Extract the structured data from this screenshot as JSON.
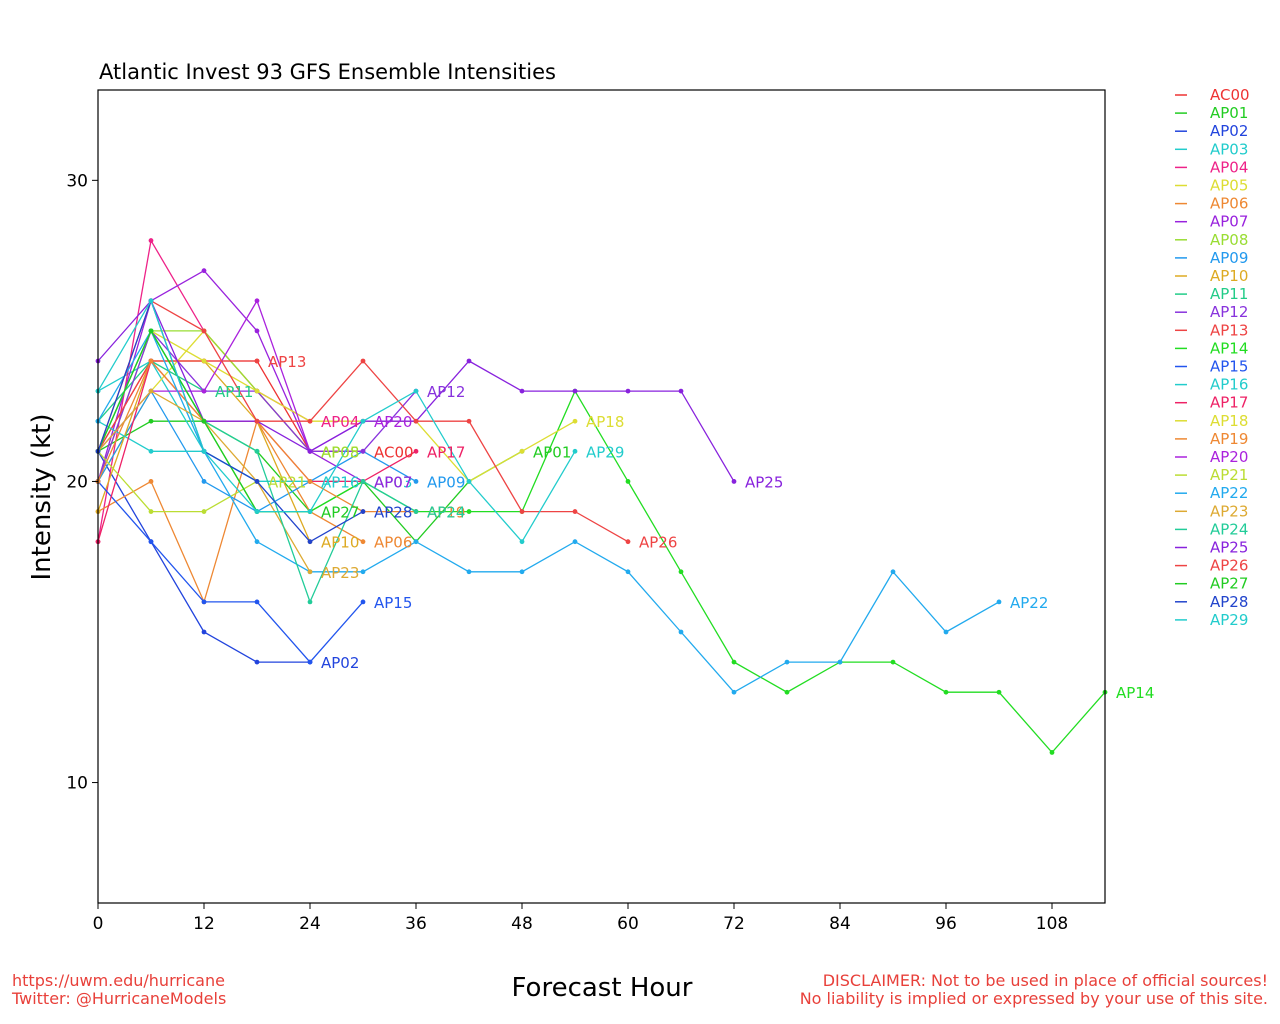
{
  "footer": {
    "url": "https://uwm.edu/hurricane",
    "twitter": "Twitter: @HurricaneModels",
    "disclaimer_1": "DISCLAIMER: Not to be used in place of official sources!",
    "disclaimer_2": "No liability is implied or expressed by your use of this site."
  },
  "chart_data": {
    "type": "line",
    "title": "Atlantic Invest 93 GFS Ensemble Intensities",
    "xlabel": "Forecast Hour",
    "ylabel": "Intensity (kt)",
    "xlim": [
      0,
      114
    ],
    "ylim": [
      6,
      33
    ],
    "xticks": [
      0,
      12,
      24,
      36,
      48,
      60,
      72,
      84,
      96,
      108
    ],
    "yticks": [
      10,
      20,
      30
    ],
    "grid": false,
    "legend_position": "outside-top-right",
    "series": [
      {
        "name": "AC00",
        "color": "#ee3333",
        "x": [
          0,
          6,
          12,
          18,
          24,
          30
        ],
        "y": [
          21,
          24,
          24,
          24,
          21,
          21
        ]
      },
      {
        "name": "AP01",
        "color": "#22cc22",
        "x": [
          0,
          6,
          12,
          18,
          24,
          30,
          36,
          42,
          48
        ],
        "y": [
          21,
          22,
          22,
          21,
          19,
          20,
          18,
          20,
          21
        ]
      },
      {
        "name": "AP02",
        "color": "#2244dd",
        "x": [
          0,
          6,
          12,
          18,
          24
        ],
        "y": [
          21,
          18,
          15,
          14,
          14
        ]
      },
      {
        "name": "AP03",
        "color": "#22cccc",
        "x": [
          0,
          6,
          12,
          18,
          24,
          30
        ],
        "y": [
          23,
          24,
          21,
          20,
          20,
          20
        ]
      },
      {
        "name": "AP04",
        "color": "#ee2288",
        "x": [
          0,
          6,
          12,
          18,
          24
        ],
        "y": [
          18,
          28,
          25,
          23,
          22
        ]
      },
      {
        "name": "AP05",
        "color": "#dddd33",
        "x": [
          0,
          6,
          12,
          18,
          24
        ],
        "y": [
          20,
          23,
          25,
          23,
          21
        ]
      },
      {
        "name": "AP06",
        "color": "#ee8833",
        "x": [
          0,
          6,
          12,
          18,
          24,
          30
        ],
        "y": [
          19,
          20,
          16,
          22,
          19,
          18
        ]
      },
      {
        "name": "AP07",
        "color": "#9922dd",
        "x": [
          0,
          6,
          12,
          18,
          24,
          30
        ],
        "y": [
          20,
          26,
          27,
          25,
          21,
          20
        ]
      },
      {
        "name": "AP08",
        "color": "#99dd33",
        "x": [
          0,
          6,
          12,
          18,
          24
        ],
        "y": [
          20,
          25,
          25,
          23,
          21
        ]
      },
      {
        "name": "AP09",
        "color": "#2299ee",
        "x": [
          0,
          6,
          12,
          18,
          24,
          30,
          36
        ],
        "y": [
          20,
          23,
          20,
          19,
          20,
          21,
          20
        ]
      },
      {
        "name": "AP10",
        "color": "#ddaa22",
        "x": [
          0,
          6,
          12,
          18,
          24
        ],
        "y": [
          19,
          24,
          24,
          22,
          18
        ]
      },
      {
        "name": "AP11",
        "color": "#22cc88",
        "x": [
          0,
          6,
          12
        ],
        "y": [
          22,
          24,
          23
        ]
      },
      {
        "name": "AP12",
        "color": "#8833dd",
        "x": [
          0,
          6,
          12,
          18,
          24,
          30,
          36
        ],
        "y": [
          20,
          25,
          23,
          23,
          21,
          21,
          23
        ]
      },
      {
        "name": "AP13",
        "color": "#ee4444",
        "x": [
          0,
          6,
          12,
          18
        ],
        "y": [
          21,
          24,
          24,
          24
        ]
      },
      {
        "name": "AP14",
        "color": "#22dd22",
        "x": [
          0,
          6,
          12,
          18,
          24,
          30,
          36,
          42,
          48,
          54,
          60,
          66,
          72,
          78,
          84,
          90,
          96,
          102,
          108,
          114
        ],
        "y": [
          21,
          25,
          22,
          19,
          19,
          20,
          19,
          19,
          19,
          23,
          20,
          17,
          14,
          13,
          14,
          14,
          13,
          13,
          11,
          13
        ]
      },
      {
        "name": "AP15",
        "color": "#2255ee",
        "x": [
          0,
          6,
          12,
          18,
          24,
          30
        ],
        "y": [
          20,
          18,
          16,
          16,
          14,
          16
        ]
      },
      {
        "name": "AP16",
        "color": "#22cccc",
        "x": [
          0,
          6,
          12,
          18,
          24
        ],
        "y": [
          22,
          21,
          21,
          20,
          20
        ]
      },
      {
        "name": "AP17",
        "color": "#ee2266",
        "x": [
          0,
          6,
          12,
          18,
          24,
          30,
          36
        ],
        "y": [
          18,
          24,
          22,
          22,
          20,
          20,
          21
        ]
      },
      {
        "name": "AP18",
        "color": "#dddd33",
        "x": [
          0,
          6,
          12,
          18,
          24,
          30,
          36,
          42,
          48,
          54
        ],
        "y": [
          21,
          25,
          24,
          23,
          22,
          22,
          22,
          20,
          21,
          22
        ]
      },
      {
        "name": "AP19",
        "color": "#ee8833",
        "x": [
          0,
          6,
          12,
          18,
          24,
          30,
          36
        ],
        "y": [
          20,
          24,
          22,
          22,
          20,
          19,
          19
        ]
      },
      {
        "name": "AP20",
        "color": "#aa22dd",
        "x": [
          0,
          6,
          12,
          18,
          24,
          30
        ],
        "y": [
          21,
          23,
          23,
          26,
          21,
          22
        ]
      },
      {
        "name": "AP21",
        "color": "#bbdd33",
        "x": [
          0,
          6,
          12,
          18
        ],
        "y": [
          21,
          19,
          19,
          20
        ]
      },
      {
        "name": "AP22",
        "color": "#22aaee",
        "x": [
          0,
          6,
          12,
          18,
          24,
          30,
          36,
          42,
          48,
          54,
          60,
          66,
          72,
          78,
          84,
          90,
          96,
          102
        ],
        "y": [
          22,
          25,
          21,
          18,
          17,
          17,
          18,
          17,
          17,
          18,
          17,
          15,
          13,
          14,
          14,
          17,
          15,
          16
        ]
      },
      {
        "name": "AP23",
        "color": "#ddaa33",
        "x": [
          0,
          6,
          12,
          18,
          24
        ],
        "y": [
          21,
          23,
          22,
          20,
          17
        ]
      },
      {
        "name": "AP24",
        "color": "#22cc99",
        "x": [
          0,
          6,
          12,
          18,
          24,
          30,
          36
        ],
        "y": [
          21,
          25,
          22,
          21,
          16,
          20,
          19
        ]
      },
      {
        "name": "AP25",
        "color": "#8822dd",
        "x": [
          0,
          6,
          12,
          18,
          24,
          30,
          36,
          42,
          48,
          54,
          60,
          66,
          72
        ],
        "y": [
          24,
          26,
          22,
          22,
          21,
          22,
          22,
          24,
          23,
          23,
          23,
          23,
          20
        ]
      },
      {
        "name": "AP26",
        "color": "#ee4444",
        "x": [
          0,
          6,
          12,
          18,
          24,
          30,
          36,
          42,
          48,
          54,
          60
        ],
        "y": [
          21,
          26,
          25,
          22,
          22,
          24,
          22,
          22,
          19,
          19,
          18
        ]
      },
      {
        "name": "AP27",
        "color": "#22cc22",
        "x": [
          0,
          6,
          12,
          18,
          24
        ],
        "y": [
          21,
          25,
          22,
          19,
          19
        ]
      },
      {
        "name": "AP28",
        "color": "#2244cc",
        "x": [
          0,
          6,
          12,
          18,
          24,
          30
        ],
        "y": [
          21,
          26,
          21,
          20,
          18,
          19
        ]
      },
      {
        "name": "AP29",
        "color": "#22cccc",
        "x": [
          0,
          6,
          12,
          18,
          24,
          30,
          36,
          42,
          48,
          54
        ],
        "y": [
          23,
          26,
          21,
          19,
          19,
          22,
          23,
          20,
          18,
          21
        ]
      }
    ]
  }
}
